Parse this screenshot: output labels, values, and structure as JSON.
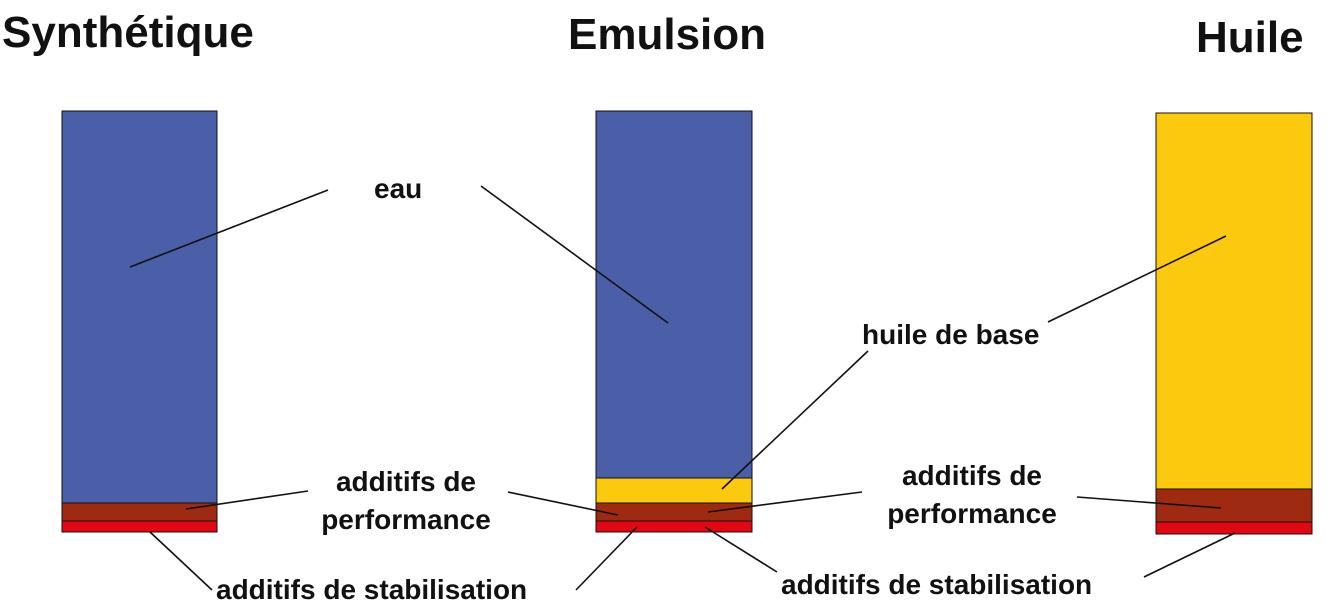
{
  "titles": {
    "synthetique": "Synthétique",
    "emulsion": "Emulsion",
    "huile": "Huile"
  },
  "labels": {
    "eau": "eau",
    "huile_de_base": "huile de base",
    "additifs_perf_1_line1": "additifs de",
    "additifs_perf_1_line2": "performance",
    "additifs_perf_2_line1": "additifs de",
    "additifs_perf_2_line2": "performance",
    "additifs_stab_1": "additifs de stabilisation",
    "additifs_stab_2": "additifs de stabilisation"
  },
  "colors": {
    "eau": "#4a5fa8",
    "huile_de_base": "#fbca0e",
    "additifs_de_performance": "#9e2a12",
    "additifs_de_stabilisation": "#e30613"
  }
}
